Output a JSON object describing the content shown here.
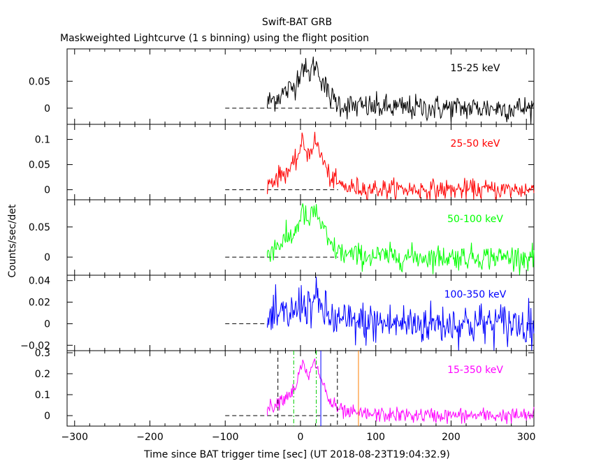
{
  "title": "Swift-BAT GRB",
  "subtitle": "Maskweighted Lightcurve (1 s binning) using the flight position",
  "xlabel": "Time since BAT trigger time [sec] (UT 2018-08-23T19:04:32.9)",
  "ylabel": "Counts/sec/det",
  "chart_data": [
    {
      "type": "line",
      "series": [
        {
          "name": "15-25 keV",
          "color": "#000000"
        }
      ],
      "x_range": [
        -44,
        310
      ],
      "baseline": {
        "x": [
          -100,
          50
        ],
        "y": 0
      },
      "peak": 0.085,
      "noise": 0.012,
      "ylim": [
        -0.03,
        0.11
      ],
      "yticks": [
        {
          "v": 0,
          "label": "0"
        },
        {
          "v": 0.05,
          "label": "0.05"
        }
      ]
    },
    {
      "type": "line",
      "series": [
        {
          "name": "25-50 keV",
          "color": "#ff0000"
        }
      ],
      "x_range": [
        -44,
        310
      ],
      "baseline": {
        "x": [
          -100,
          50
        ],
        "y": 0
      },
      "peak": 0.1,
      "noise": 0.01,
      "ylim": [
        -0.02,
        0.13
      ],
      "yticks": [
        {
          "v": 0,
          "label": "0"
        },
        {
          "v": 0.05,
          "label": "0.05"
        },
        {
          "v": 0.1,
          "label": "0.1"
        }
      ]
    },
    {
      "type": "line",
      "series": [
        {
          "name": "50-100 keV",
          "color": "#00ff00"
        }
      ],
      "x_range": [
        -44,
        310
      ],
      "baseline": {
        "x": [
          -100,
          50
        ],
        "y": 0
      },
      "peak": 0.08,
      "noise": 0.01,
      "ylim": [
        -0.03,
        0.095
      ],
      "yticks": [
        {
          "v": 0,
          "label": "0"
        },
        {
          "v": 0.05,
          "label": "0.05"
        }
      ]
    },
    {
      "type": "line",
      "series": [
        {
          "name": "100-350 keV",
          "color": "#0000ff"
        }
      ],
      "x_range": [
        -44,
        310
      ],
      "baseline": {
        "x": [
          -100,
          -44
        ],
        "y": 0
      },
      "peak": 0.022,
      "noise": 0.01,
      "ylim": [
        -0.025,
        0.045
      ],
      "yticks": [
        {
          "v": -0.02,
          "label": "−0.02"
        },
        {
          "v": 0,
          "label": "0"
        },
        {
          "v": 0.02,
          "label": "0.02"
        },
        {
          "v": 0.04,
          "label": "0.04"
        }
      ]
    },
    {
      "type": "line",
      "series": [
        {
          "name": "15-350 keV",
          "color": "#ff00ff"
        }
      ],
      "x_range": [
        -44,
        310
      ],
      "baseline": {
        "x": [
          -100,
          50
        ],
        "y": 0
      },
      "peak": 0.26,
      "noise": 0.018,
      "ylim": [
        -0.05,
        0.31
      ],
      "yticks": [
        {
          "v": 0,
          "label": "0"
        },
        {
          "v": 0.1,
          "label": "0.1"
        },
        {
          "v": 0.2,
          "label": "0.2"
        },
        {
          "v": 0.3,
          "label": "0.3"
        }
      ],
      "markers": [
        {
          "x": -30,
          "color": "#000000",
          "style": "dashed"
        },
        {
          "x": -9,
          "color": "#00cc00",
          "style": "dashdot"
        },
        {
          "x": 21,
          "color": "#00cc00",
          "style": "dashdot"
        },
        {
          "x": 27,
          "color": "#0000ff",
          "style": "solid"
        },
        {
          "x": 49,
          "color": "#000000",
          "style": "dashed"
        },
        {
          "x": 77,
          "color": "#ff7f00",
          "style": "solid"
        }
      ]
    }
  ],
  "x_axis": {
    "range": [
      -310,
      310
    ],
    "ticks": [
      {
        "v": -300,
        "label": "−300"
      },
      {
        "v": -200,
        "label": "−200"
      },
      {
        "v": -100,
        "label": "−100"
      },
      {
        "v": 0,
        "label": "0"
      },
      {
        "v": 100,
        "label": "100"
      },
      {
        "v": 200,
        "label": "200"
      },
      {
        "v": 300,
        "label": "300"
      }
    ]
  }
}
